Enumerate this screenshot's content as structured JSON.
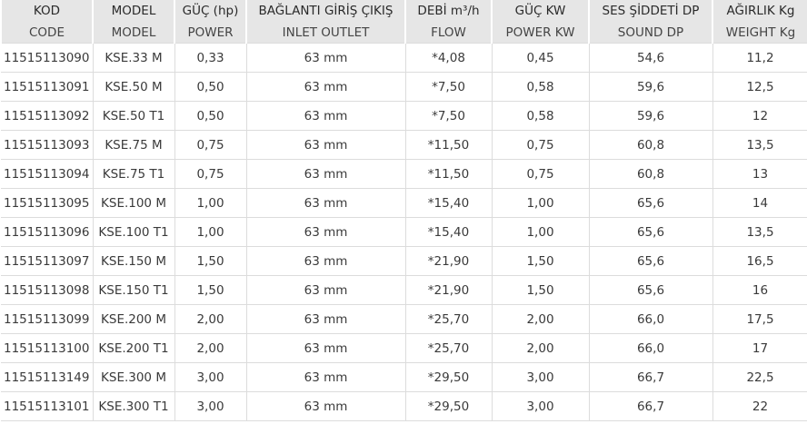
{
  "headers_tr": [
    "KOD",
    "MODEL",
    "GÜÇ (hp)",
    "BAĞLANTI GİRİŞ ÇIKIŞ",
    "DEBİ m³/h",
    "GÜÇ KW",
    "SES ŞİDDETİ DP",
    "AĞIRLIK Kg"
  ],
  "headers_en": [
    "CODE",
    "MODEL",
    "POWER",
    "INLET OUTLET",
    "FLOW",
    "POWER KW",
    "SOUND DP",
    "WEIGHT Kg"
  ],
  "rows": [
    [
      "11515113090",
      "KSE.33 M",
      "0,33",
      "63 mm",
      "*4,08",
      "0,45",
      "54,6",
      "11,2"
    ],
    [
      "11515113091",
      "KSE.50 M",
      "0,50",
      "63 mm",
      "*7,50",
      "0,58",
      "59,6",
      "12,5"
    ],
    [
      "11515113092",
      "KSE.50 T1",
      "0,50",
      "63 mm",
      "*7,50",
      "0,58",
      "59,6",
      "12"
    ],
    [
      "11515113093",
      "KSE.75 M",
      "0,75",
      "63 mm",
      "*11,50",
      "0,75",
      "60,8",
      "13,5"
    ],
    [
      "11515113094",
      "KSE.75 T1",
      "0,75",
      "63 mm",
      "*11,50",
      "0,75",
      "60,8",
      "13"
    ],
    [
      "11515113095",
      "KSE.100 M",
      "1,00",
      "63 mm",
      "*15,40",
      "1,00",
      "65,6",
      "14"
    ],
    [
      "11515113096",
      "KSE.100 T1",
      "1,00",
      "63 mm",
      "*15,40",
      "1,00",
      "65,6",
      "13,5"
    ],
    [
      "11515113097",
      "KSE.150 M",
      "1,50",
      "63 mm",
      "*21,90",
      "1,50",
      "65,6",
      "16,5"
    ],
    [
      "11515113098",
      "KSE.150 T1",
      "1,50",
      "63 mm",
      "*21,90",
      "1,50",
      "65,6",
      "16"
    ],
    [
      "11515113099",
      "KSE.200 M",
      "2,00",
      "63 mm",
      "*25,70",
      "2,00",
      "66,0",
      "17,5"
    ],
    [
      "11515113100",
      "KSE.200 T1",
      "2,00",
      "63 mm",
      "*25,70",
      "2,00",
      "66,0",
      "17"
    ],
    [
      "11515113149",
      "KSE.300 M",
      "3,00",
      "63 mm",
      "*29,50",
      "3,00",
      "66,7",
      "22,5"
    ],
    [
      "11515113101",
      "KSE.300 T1",
      "3,00",
      "63 mm",
      "*29,50",
      "3,00",
      "66,7",
      "22"
    ]
  ]
}
